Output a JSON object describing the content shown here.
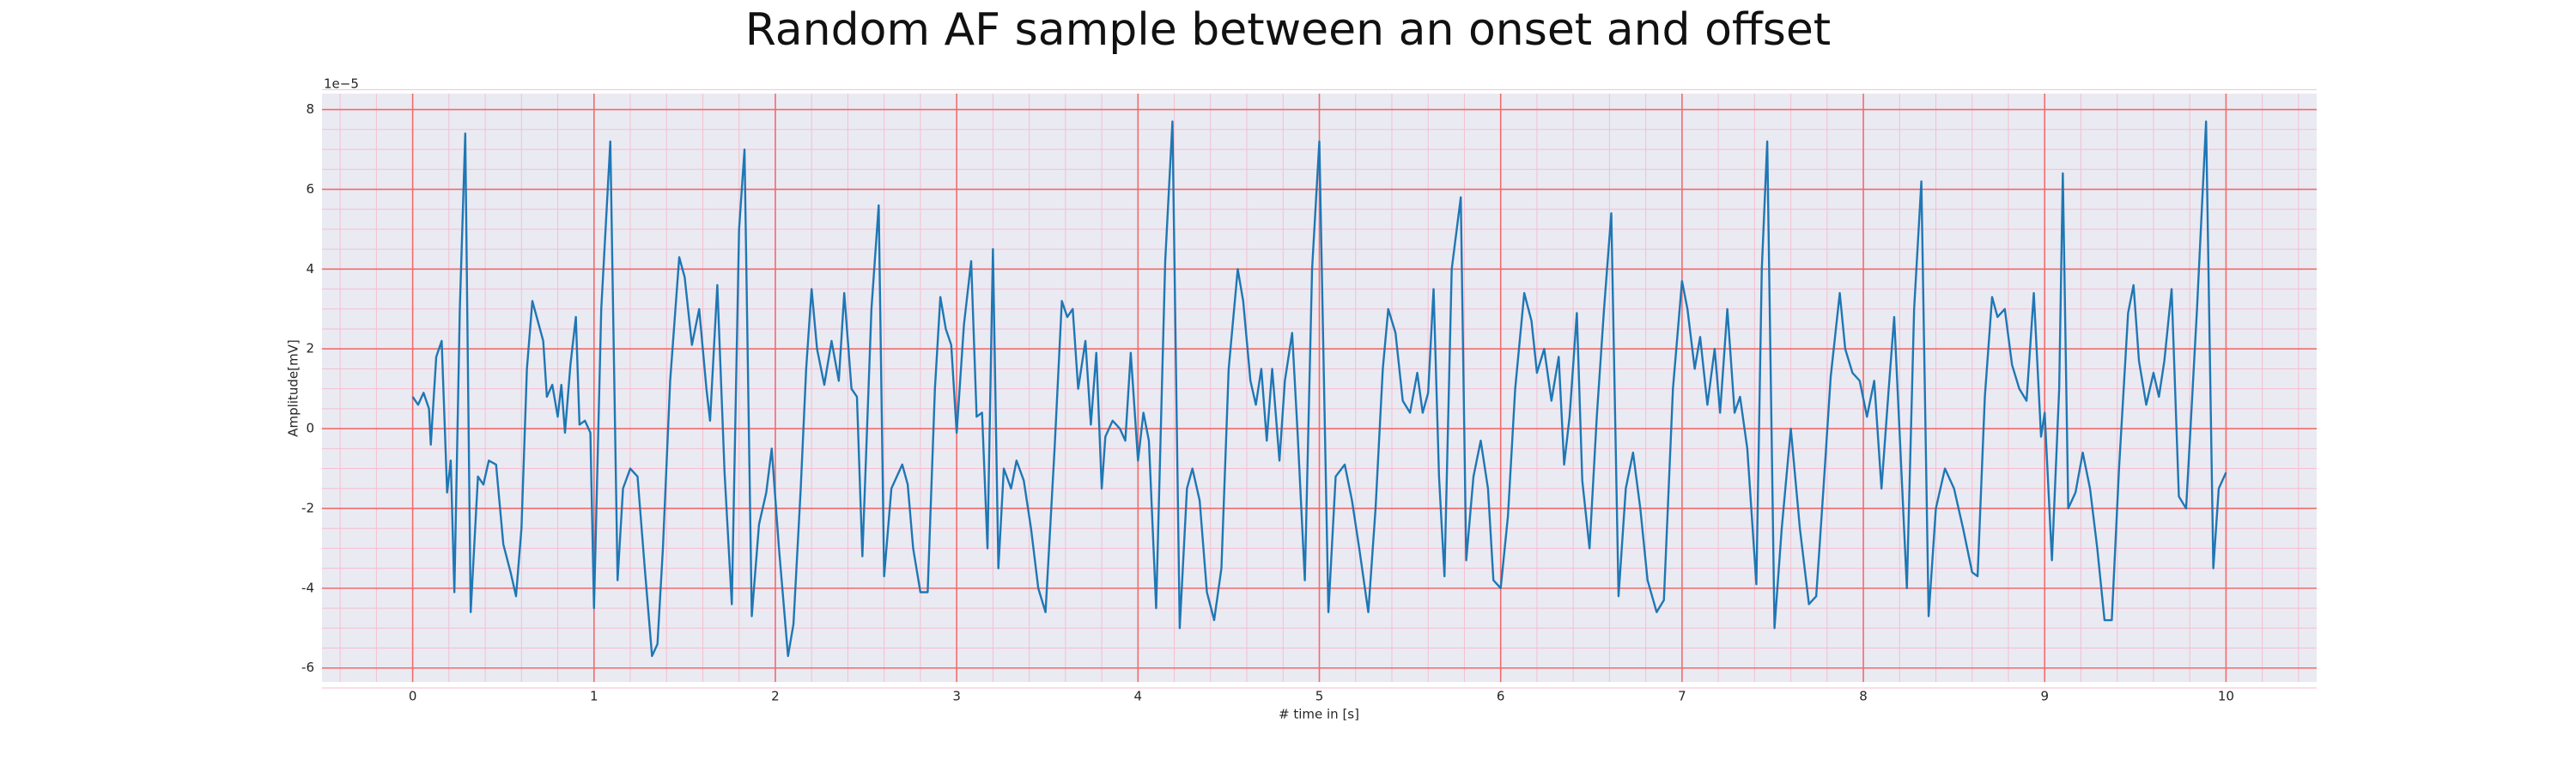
{
  "chart_data": {
    "type": "line",
    "title": "Random AF sample between an onset and offset",
    "xlabel": "# time in [s]",
    "ylabel": "Amplitude[mV]",
    "y_offset_label": "1e−5",
    "xlim": [
      -0.5,
      10.5
    ],
    "ylim": [
      -6.35,
      8.4
    ],
    "xticks": [
      0,
      1,
      2,
      3,
      4,
      5,
      6,
      7,
      8,
      9,
      10
    ],
    "yticks": [
      -6,
      -4,
      -2,
      0,
      2,
      4,
      6,
      8
    ],
    "xminor": [
      -0.4,
      -0.2,
      0.2,
      0.4,
      0.6,
      0.8,
      1.2,
      1.4,
      1.6,
      1.8,
      2.2,
      2.4,
      2.6,
      2.8,
      3.2,
      3.4,
      3.6,
      3.8,
      4.2,
      4.4,
      4.6,
      4.8,
      5.2,
      5.4,
      5.6,
      5.8,
      6.2,
      6.4,
      6.6,
      6.8,
      7.2,
      7.4,
      7.6,
      7.8,
      8.2,
      8.4,
      8.6,
      8.8,
      9.2,
      9.4,
      9.6,
      9.8,
      10.2,
      10.4
    ],
    "yminor": [
      -6.5,
      -5.5,
      -5,
      -4.5,
      -3.5,
      -3,
      -2.5,
      -1.5,
      -1,
      -0.5,
      0.5,
      1,
      1.5,
      2.5,
      3,
      3.5,
      4.5,
      5,
      5.5,
      6.5,
      7,
      7.5,
      8.5
    ],
    "grid": true,
    "major_grid_color": "#f26b6b",
    "minor_grid_color": "#f4bfcf",
    "background": "#eaeaf2",
    "series": [
      {
        "color": "#1f77b4",
        "x": [
          0.0,
          0.03,
          0.06,
          0.09,
          0.1,
          0.13,
          0.16,
          0.19,
          0.21,
          0.23,
          0.26,
          0.29,
          0.32,
          0.36,
          0.39,
          0.42,
          0.46,
          0.5,
          0.54,
          0.57,
          0.6,
          0.63,
          0.66,
          0.69,
          0.72,
          0.74,
          0.77,
          0.8,
          0.82,
          0.84,
          0.87,
          0.9,
          0.92,
          0.95,
          0.98,
          1.0,
          1.04,
          1.09,
          1.13,
          1.16,
          1.2,
          1.24,
          1.28,
          1.32,
          1.35,
          1.38,
          1.42,
          1.47,
          1.5,
          1.54,
          1.58,
          1.62,
          1.64,
          1.68,
          1.72,
          1.76,
          1.8,
          1.83,
          1.87,
          1.91,
          1.95,
          1.98,
          2.02,
          2.07,
          2.1,
          2.14,
          2.17,
          2.2,
          2.23,
          2.27,
          2.31,
          2.35,
          2.38,
          2.42,
          2.45,
          2.48,
          2.53,
          2.57,
          2.6,
          2.64,
          2.7,
          2.73,
          2.76,
          2.8,
          2.84,
          2.88,
          2.91,
          2.94,
          2.97,
          3.0,
          3.04,
          3.08,
          3.11,
          3.14,
          3.17,
          3.2,
          3.23,
          3.26,
          3.3,
          3.33,
          3.37,
          3.41,
          3.45,
          3.49,
          3.54,
          3.58,
          3.61,
          3.64,
          3.67,
          3.71,
          3.74,
          3.77,
          3.8,
          3.82,
          3.86,
          3.9,
          3.93,
          3.96,
          4.0,
          4.03,
          4.06,
          4.1,
          4.15,
          4.19,
          4.23,
          4.27,
          4.3,
          4.34,
          4.38,
          4.42,
          4.46,
          4.5,
          4.55,
          4.58,
          4.62,
          4.65,
          4.68,
          4.71,
          4.74,
          4.78,
          4.81,
          4.85,
          4.88,
          4.92,
          4.96,
          5.0,
          5.05,
          5.09,
          5.14,
          5.18,
          5.22,
          5.27,
          5.31,
          5.35,
          5.38,
          5.42,
          5.46,
          5.5,
          5.54,
          5.57,
          5.6,
          5.63,
          5.66,
          5.69,
          5.73,
          5.78,
          5.81,
          5.85,
          5.89,
          5.93,
          5.96,
          6.0,
          6.04,
          6.08,
          6.13,
          6.17,
          6.2,
          6.24,
          6.28,
          6.32,
          6.35,
          6.38,
          6.42,
          6.45,
          6.49,
          6.53,
          6.57,
          6.61,
          6.65,
          6.69,
          6.73,
          6.77,
          6.81,
          6.86,
          6.9,
          6.95,
          7.0,
          7.03,
          7.07,
          7.1,
          7.14,
          7.18,
          7.21,
          7.25,
          7.29,
          7.32,
          7.36,
          7.41,
          7.44,
          7.47,
          7.51,
          7.55,
          7.6,
          7.65,
          7.7,
          7.74,
          7.78,
          7.82,
          7.87,
          7.9,
          7.94,
          7.98,
          8.02,
          8.06,
          8.1,
          8.14,
          8.17,
          8.2,
          8.24,
          8.28,
          8.32,
          8.36,
          8.4,
          8.45,
          8.5,
          8.55,
          8.6,
          8.63,
          8.67,
          8.71,
          8.74,
          8.78,
          8.82,
          8.86,
          8.9,
          8.94,
          8.98,
          9.0,
          9.04,
          9.08,
          9.1,
          9.13,
          9.17,
          9.21,
          9.25,
          9.29,
          9.33,
          9.37,
          9.41,
          9.46,
          9.49,
          9.52,
          9.56,
          9.6,
          9.63,
          9.66,
          9.7,
          9.74,
          9.78,
          9.84,
          9.89,
          9.93,
          9.96,
          10.0
        ],
        "values": [
          0.8,
          0.6,
          0.9,
          0.5,
          -0.4,
          1.8,
          2.2,
          -1.6,
          -0.8,
          -4.1,
          3.0,
          7.4,
          -4.6,
          -1.2,
          -1.4,
          -0.8,
          -0.9,
          -2.9,
          -3.6,
          -4.2,
          -2.5,
          1.5,
          3.2,
          2.7,
          2.2,
          0.8,
          1.1,
          0.3,
          1.1,
          -0.1,
          1.6,
          2.8,
          0.1,
          0.2,
          -0.1,
          -4.5,
          3.0,
          7.2,
          -3.8,
          -1.5,
          -1.0,
          -1.2,
          -3.5,
          -5.7,
          -5.4,
          -3.0,
          1.2,
          4.3,
          3.8,
          2.1,
          3.0,
          1.0,
          0.2,
          3.6,
          -1.1,
          -4.4,
          5.0,
          7.0,
          -4.7,
          -2.4,
          -1.6,
          -0.5,
          -3.0,
          -5.7,
          -4.9,
          -1.5,
          1.5,
          3.5,
          2.0,
          1.1,
          2.2,
          1.2,
          3.4,
          1.0,
          0.8,
          -3.2,
          3.0,
          5.6,
          -3.7,
          -1.5,
          -0.9,
          -1.4,
          -3.0,
          -4.1,
          -4.1,
          1.0,
          3.3,
          2.5,
          2.1,
          -0.1,
          2.6,
          4.2,
          0.3,
          0.4,
          -3.0,
          4.5,
          -3.5,
          -1.0,
          -1.5,
          -0.8,
          -1.3,
          -2.5,
          -4.0,
          -4.6,
          -0.5,
          3.2,
          2.8,
          3.0,
          1.0,
          2.2,
          0.1,
          1.9,
          -1.5,
          -0.2,
          0.2,
          0.0,
          -0.3,
          1.9,
          -0.8,
          0.4,
          -0.3,
          -4.5,
          4.2,
          7.7,
          -5.0,
          -1.5,
          -1.0,
          -1.8,
          -4.1,
          -4.8,
          -3.5,
          1.5,
          4.0,
          3.2,
          1.2,
          0.6,
          1.5,
          -0.3,
          1.5,
          -0.8,
          1.2,
          2.4,
          -0.1,
          -3.8,
          4.0,
          7.2,
          -4.6,
          -1.2,
          -0.9,
          -1.8,
          -3.0,
          -4.6,
          -2.0,
          1.5,
          3.0,
          2.4,
          0.7,
          0.4,
          1.4,
          0.4,
          0.9,
          3.5,
          -1.2,
          -3.7,
          4.0,
          5.8,
          -3.3,
          -1.2,
          -0.3,
          -1.5,
          -3.8,
          -4.0,
          -2.2,
          1.0,
          3.4,
          2.7,
          1.4,
          2.0,
          0.7,
          1.8,
          -0.9,
          0.3,
          2.9,
          -1.3,
          -3.0,
          0.3,
          3.0,
          5.4,
          -4.2,
          -1.5,
          -0.6,
          -2.0,
          -3.8,
          -4.6,
          -4.3,
          1.0,
          3.7,
          3.0,
          1.5,
          2.3,
          0.6,
          2.0,
          0.4,
          3.0,
          0.4,
          0.8,
          -0.5,
          -3.9,
          4.0,
          7.2,
          -5.0,
          -2.5,
          0.0,
          -2.5,
          -4.4,
          -4.2,
          -1.5,
          1.3,
          3.4,
          2.0,
          1.4,
          1.2,
          0.3,
          1.2,
          -1.5,
          1.0,
          2.8,
          -0.1,
          -4.0,
          3.0,
          6.2,
          -4.7,
          -2.0,
          -1.0,
          -1.5,
          -2.5,
          -3.6,
          -3.7,
          0.8,
          3.3,
          2.8,
          3.0,
          1.6,
          1.0,
          0.7,
          3.4,
          -0.2,
          0.4,
          -3.3,
          1.0,
          6.4,
          -2.0,
          -1.6,
          -0.6,
          -1.5,
          -3.0,
          -4.8,
          -4.8,
          -1.0,
          2.9,
          3.6,
          1.7,
          0.6,
          1.4,
          0.8,
          1.7,
          3.5,
          -1.7,
          -2.0,
          3.0,
          7.7,
          -3.5,
          -1.5,
          -1.1
        ]
      }
    ]
  }
}
